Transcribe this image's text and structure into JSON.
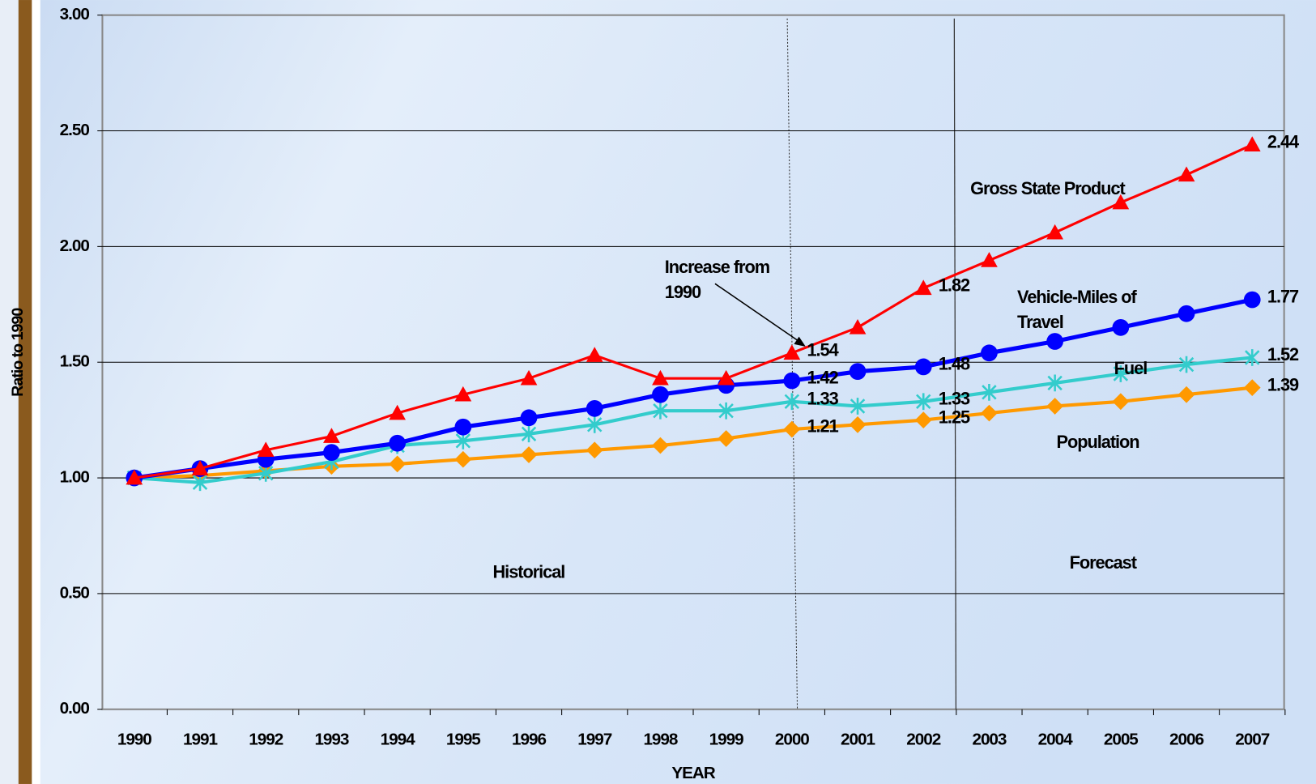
{
  "chart_data": {
    "type": "line",
    "y_label": "Ratio to 1990",
    "x_label": "YEAR",
    "categories": [
      "1990",
      "1991",
      "1992",
      "1993",
      "1994",
      "1995",
      "1996",
      "1997",
      "1998",
      "1999",
      "2000",
      "2001",
      "2002",
      "2003",
      "2004",
      "2005",
      "2006",
      "2007"
    ],
    "ylim": [
      0,
      3
    ],
    "yticks": [
      {
        "value": 0,
        "label": "0.00"
      },
      {
        "value": 0.5,
        "label": "0.50"
      },
      {
        "value": 1,
        "label": "1.00"
      },
      {
        "value": 1.5,
        "label": "1.50"
      },
      {
        "value": 2,
        "label": "2.00"
      },
      {
        "value": 2.5,
        "label": "2.50"
      },
      {
        "value": 3,
        "label": "3.00"
      }
    ],
    "grid": true,
    "series": [
      {
        "name": "Gross State Product",
        "color": "#ff0000",
        "marker": "triangle",
        "values": [
          1.0,
          1.04,
          1.12,
          1.18,
          1.28,
          1.36,
          1.43,
          1.53,
          1.43,
          1.43,
          1.54,
          1.65,
          1.82,
          1.94,
          2.06,
          2.19,
          2.31,
          2.44
        ],
        "value_labels": [
          null,
          null,
          null,
          null,
          null,
          null,
          null,
          null,
          null,
          null,
          "1.54",
          null,
          "1.82",
          null,
          null,
          null,
          null,
          "2.44"
        ]
      },
      {
        "name": "Vehicle-Miles of Travel",
        "color": "#0000ff",
        "marker": "circle",
        "values": [
          1.0,
          1.04,
          1.08,
          1.11,
          1.15,
          1.22,
          1.26,
          1.3,
          1.36,
          1.4,
          1.42,
          1.46,
          1.48,
          1.54,
          1.59,
          1.65,
          1.71,
          1.77
        ],
        "value_labels": [
          null,
          null,
          null,
          null,
          null,
          null,
          null,
          null,
          null,
          null,
          "1.42",
          null,
          "1.48",
          null,
          null,
          null,
          null,
          "1.77"
        ]
      },
      {
        "name": "Fuel",
        "color": "#33cccc",
        "marker": "star",
        "values": [
          1.0,
          0.98,
          1.02,
          1.07,
          1.14,
          1.16,
          1.19,
          1.23,
          1.29,
          1.29,
          1.33,
          1.31,
          1.33,
          1.37,
          1.41,
          1.45,
          1.49,
          1.52
        ],
        "value_labels": [
          null,
          null,
          null,
          null,
          null,
          null,
          null,
          null,
          null,
          null,
          "1.33",
          null,
          "1.33",
          null,
          null,
          null,
          null,
          "1.52"
        ]
      },
      {
        "name": "Population",
        "color": "#ff9900",
        "marker": "diamond",
        "values": [
          1.0,
          1.01,
          1.03,
          1.05,
          1.06,
          1.08,
          1.1,
          1.12,
          1.14,
          1.17,
          1.21,
          1.23,
          1.25,
          1.28,
          1.31,
          1.33,
          1.36,
          1.39
        ],
        "value_labels": [
          null,
          null,
          null,
          null,
          null,
          null,
          null,
          null,
          null,
          null,
          "1.21",
          null,
          "1.25",
          null,
          null,
          null,
          null,
          "1.39"
        ]
      }
    ],
    "annotations": [
      "Historical",
      "Forecast",
      "Increase from 1990"
    ]
  }
}
